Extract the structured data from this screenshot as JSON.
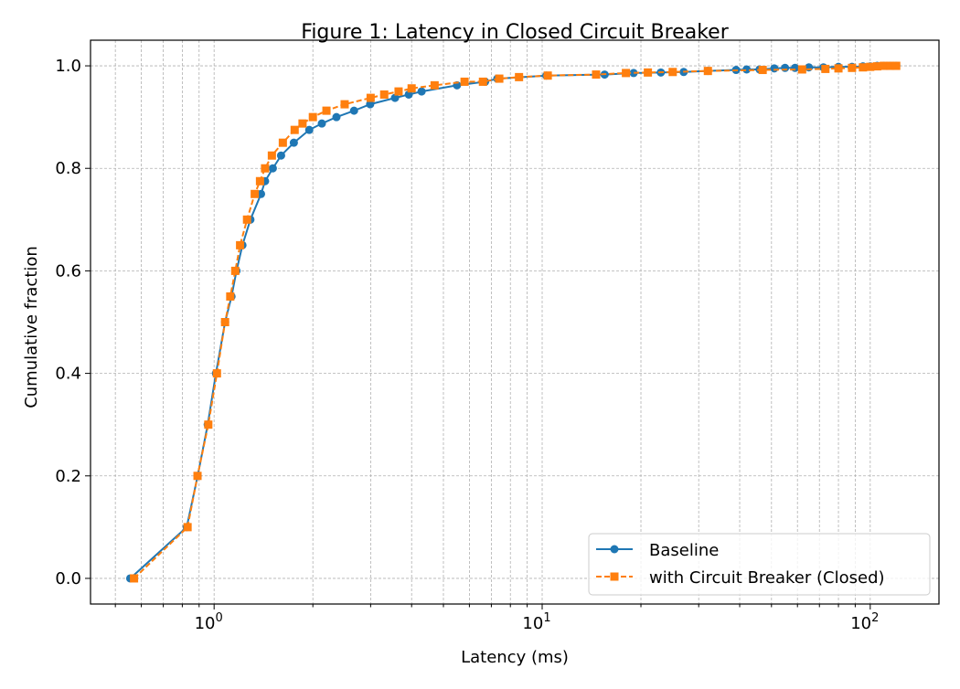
{
  "chart_data": {
    "type": "line",
    "title": "Figure 1: Latency in Closed Circuit Breaker",
    "xlabel": "Latency (ms)",
    "ylabel": "Cumulative fraction",
    "xscale": "log",
    "xlim": [
      0.42,
      162
    ],
    "ylim": [
      -0.05,
      1.05
    ],
    "grid": true,
    "legend_position": "lower-right",
    "x_tick_labels": [
      "10^0",
      "10^1",
      "10^2"
    ],
    "x_ticks": [
      1,
      10,
      100
    ],
    "y_ticks": [
      0.0,
      0.2,
      0.4,
      0.6,
      0.8,
      1.0
    ],
    "y_tick_labels": [
      "0.0",
      "0.2",
      "0.4",
      "0.6",
      "0.8",
      "1.0"
    ],
    "series": [
      {
        "name": "Baseline",
        "color": "#1f77b4",
        "marker": "circle",
        "linestyle": "solid",
        "x": [
          0.555,
          0.825,
          0.891,
          0.956,
          1.013,
          1.08,
          1.13,
          1.17,
          1.22,
          1.29,
          1.39,
          1.43,
          1.51,
          1.6,
          1.75,
          1.95,
          2.13,
          2.36,
          2.67,
          2.99,
          3.56,
          3.92,
          4.29,
          5.5,
          6.7,
          7.3,
          10.3,
          15.5,
          19,
          23,
          27,
          32,
          39,
          42,
          46,
          51,
          55,
          59,
          65,
          72,
          80,
          88,
          95,
          100,
          105,
          110,
          115,
          120
        ],
        "y": [
          0.0,
          0.1,
          0.2,
          0.3,
          0.4,
          0.5,
          0.55,
          0.6,
          0.65,
          0.7,
          0.75,
          0.775,
          0.8,
          0.825,
          0.85,
          0.875,
          0.8875,
          0.9,
          0.9125,
          0.925,
          0.9375,
          0.944,
          0.95,
          0.962,
          0.969,
          0.975,
          0.981,
          0.983,
          0.986,
          0.987,
          0.988,
          0.99,
          0.992,
          0.993,
          0.993,
          0.995,
          0.996,
          0.996,
          0.997,
          0.997,
          0.998,
          0.998,
          0.999,
          0.999,
          1.0,
          1.0,
          1.0,
          1.0
        ]
      },
      {
        "name": "with Circuit Breaker (Closed)",
        "color": "#ff7f0e",
        "marker": "square",
        "linestyle": "dashed",
        "x": [
          0.57,
          0.83,
          0.89,
          0.96,
          1.02,
          1.08,
          1.12,
          1.16,
          1.2,
          1.26,
          1.33,
          1.38,
          1.43,
          1.5,
          1.62,
          1.76,
          1.86,
          2.0,
          2.2,
          2.5,
          3.0,
          3.3,
          3.65,
          4.0,
          4.7,
          5.8,
          6.6,
          7.4,
          8.5,
          10.4,
          14.6,
          18,
          21,
          25,
          32,
          47,
          62,
          73,
          80,
          88,
          95,
          100,
          105,
          110,
          115,
          120
        ],
        "y": [
          0.0,
          0.1,
          0.2,
          0.3,
          0.4,
          0.5,
          0.55,
          0.6,
          0.65,
          0.7,
          0.75,
          0.775,
          0.8,
          0.825,
          0.85,
          0.875,
          0.8875,
          0.9,
          0.9125,
          0.925,
          0.9375,
          0.944,
          0.95,
          0.956,
          0.962,
          0.969,
          0.969,
          0.975,
          0.978,
          0.981,
          0.983,
          0.986,
          0.987,
          0.988,
          0.99,
          0.992,
          0.993,
          0.994,
          0.995,
          0.996,
          0.997,
          0.998,
          0.999,
          1.0,
          1.0,
          1.0
        ]
      }
    ]
  }
}
